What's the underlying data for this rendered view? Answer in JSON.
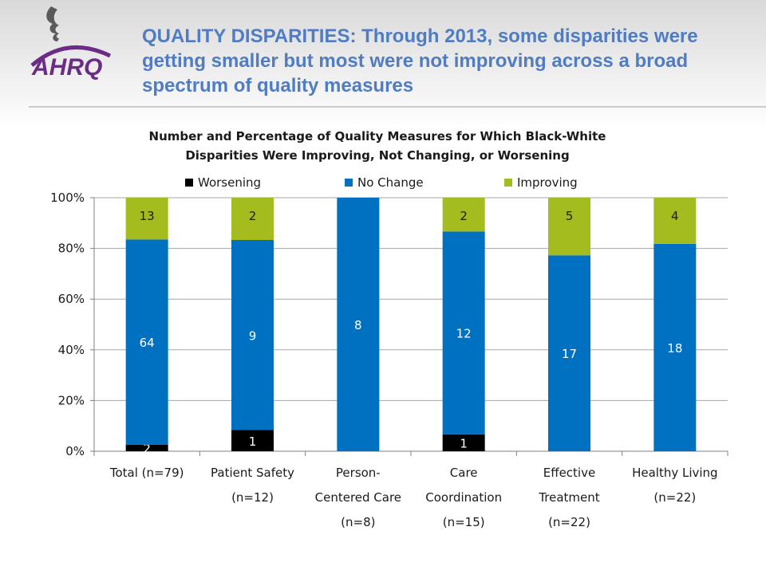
{
  "slide": {
    "title": "QUALITY DISPARITIES: Through 2013, some disparities were getting smaller but most were not improving across a broad spectrum of quality measures",
    "logo_text": "AHRQ"
  },
  "colors": {
    "worsening": "#000000",
    "no_change": "#0070c0",
    "improving": "#a4bc1e",
    "title": "#4f7cc2",
    "logo": "#6b2c87"
  },
  "chart_data": {
    "type": "bar",
    "stacked": true,
    "percent": true,
    "title": "Number and Percentage of Quality Measures for Which Black-White Disparities  Were Improving, Not Changing, or Worsening",
    "title_lines": [
      "Number and Percentage of Quality Measures for Which Black-White",
      "Disparities  Were Improving, Not Changing, or Worsening"
    ],
    "categories": [
      "Total (n=79)",
      "Patient Safety (n=12)",
      "Person-Centered Care (n=8)",
      "Care Coordination (n=15)",
      "Effective Treatment (n=22)",
      "Healthy Living (n=22)"
    ],
    "category_lines": [
      [
        "Total (n=79)"
      ],
      [
        "Patient Safety",
        "(n=12)"
      ],
      [
        "Person-",
        "Centered Care",
        "(n=8)"
      ],
      [
        "Care",
        "Coordination",
        "(n=15)"
      ],
      [
        "Effective",
        "Treatment",
        "(n=22)"
      ],
      [
        "Healthy Living",
        "(n=22)"
      ]
    ],
    "series": [
      {
        "name": "Worsening",
        "values": [
          2,
          1,
          0,
          1,
          0,
          0
        ]
      },
      {
        "name": "No Change",
        "values": [
          64,
          9,
          8,
          12,
          17,
          18
        ]
      },
      {
        "name": "Improving",
        "values": [
          13,
          2,
          0,
          2,
          5,
          4
        ]
      }
    ],
    "ylim": [
      0,
      100
    ],
    "yticks": [
      "0%",
      "20%",
      "40%",
      "60%",
      "80%",
      "100%"
    ],
    "grid": true,
    "legend": "top"
  }
}
